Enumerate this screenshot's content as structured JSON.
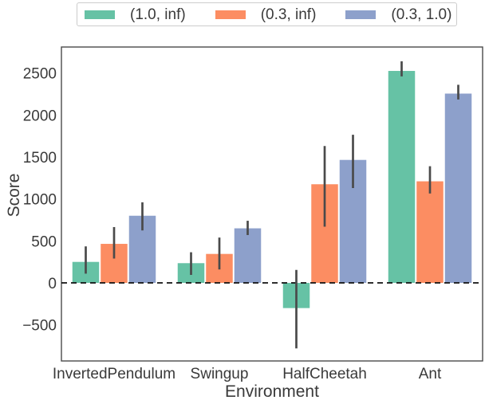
{
  "chart_data": {
    "type": "bar",
    "title": "",
    "xlabel": "Environment",
    "ylabel": "Score",
    "categories": [
      "InvertedPendulum",
      "Swingup",
      "HalfCheetah",
      "Ant"
    ],
    "series": [
      {
        "name": "(1.0, inf)",
        "color": "#66c2a5",
        "values": [
          250,
          235,
          -300,
          2525
        ],
        "ci_low": [
          110,
          95,
          -780,
          2460
        ],
        "ci_high": [
          435,
          365,
          155,
          2640
        ]
      },
      {
        "name": "(0.3, inf)",
        "color": "#fc8d62",
        "values": [
          465,
          345,
          1175,
          1210
        ],
        "ci_low": [
          290,
          160,
          670,
          1065
        ],
        "ci_high": [
          665,
          540,
          1630,
          1390
        ]
      },
      {
        "name": "(0.3, 1.0)",
        "color": "#8da0cb",
        "values": [
          800,
          650,
          1465,
          2255
        ],
        "ci_low": [
          625,
          570,
          1130,
          2185
        ],
        "ci_high": [
          960,
          740,
          1765,
          2360
        ]
      }
    ],
    "ylim": [
      -930,
      2810
    ],
    "yticks": [
      -500,
      0,
      500,
      1000,
      1500,
      2000,
      2500
    ],
    "zero_line": true,
    "grid": false,
    "legend_position": "top-center"
  },
  "style": {
    "background": "#ffffff",
    "text_color": "#3a3a3a",
    "spine_color": "#4a4a4a",
    "error_bar_color": "#4a4a4a",
    "zero_line_color": "#111111",
    "legend_border_color": "#cccccc"
  }
}
